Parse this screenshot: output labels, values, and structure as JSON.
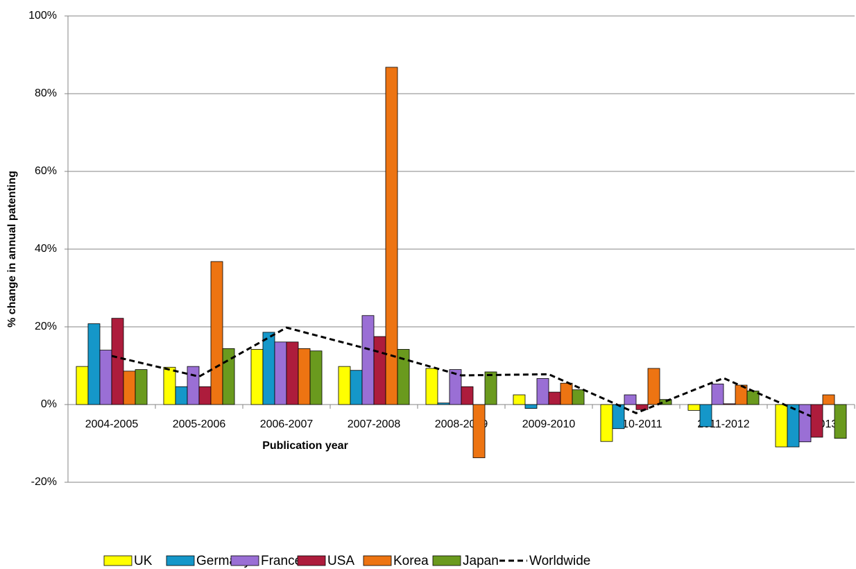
{
  "chart_data": {
    "type": "bar",
    "x_label": "Publication year",
    "y_label": "% change in annual patenting",
    "categories": [
      "2004-2005",
      "2005-2006",
      "2006-2007",
      "2007-2008",
      "2008-2009",
      "2009-2010",
      "2010-2011",
      "2011-2012",
      "2012-2013"
    ],
    "series": [
      {
        "name": "UK",
        "color": "#ffff00",
        "values": [
          9.8,
          9.6,
          14.2,
          9.8,
          9.3,
          2.5,
          -9.5,
          -1.5,
          -10.9
        ]
      },
      {
        "name": "Germany",
        "color": "#1597c9",
        "values": [
          20.8,
          4.6,
          18.6,
          8.8,
          0.4,
          -1.0,
          -6.2,
          -5.7,
          -10.9
        ]
      },
      {
        "name": "France",
        "color": "#9a6fd5",
        "values": [
          14.0,
          9.8,
          16.1,
          22.9,
          9.0,
          6.7,
          2.5,
          5.3,
          -9.6
        ]
      },
      {
        "name": "USA",
        "color": "#ad1c3c",
        "values": [
          22.2,
          4.6,
          16.1,
          17.5,
          4.6,
          3.2,
          -1.3,
          0.2,
          -8.4
        ]
      },
      {
        "name": "Korea",
        "color": "#ed7412",
        "values": [
          8.6,
          36.8,
          14.4,
          86.8,
          -13.7,
          5.5,
          9.3,
          5.0,
          2.5
        ]
      },
      {
        "name": "Japan",
        "color": "#6a9a1e",
        "values": [
          9.0,
          14.4,
          13.8,
          14.2,
          8.4,
          3.8,
          1.3,
          3.5,
          -8.7
        ]
      },
      {
        "name": "Worldwide",
        "type": "line",
        "dashed": true,
        "color": "#000000",
        "values": [
          12.5,
          7.2,
          19.8,
          13.9,
          7.5,
          7.8,
          -2.2,
          6.8,
          -3.0
        ]
      }
    ],
    "ylim": [
      -20,
      100
    ],
    "yticks": [
      {
        "value": -20,
        "label": "-20%"
      },
      {
        "value": 0,
        "label": "0%"
      },
      {
        "value": 20,
        "label": "20%"
      },
      {
        "value": 40,
        "label": "40%"
      },
      {
        "value": 60,
        "label": "60%"
      },
      {
        "value": 80,
        "label": "80%"
      },
      {
        "value": 100,
        "label": "100%"
      }
    ],
    "grid": true,
    "legend": "bottom"
  }
}
